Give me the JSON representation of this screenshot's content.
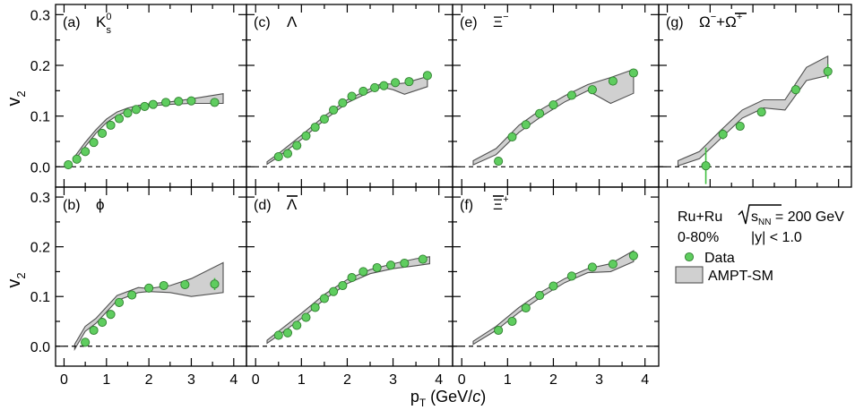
{
  "figure": {
    "ylabel_main": "v",
    "ylabel_sub": "2",
    "xlabel_main": "p",
    "xlabel_sub": "T",
    "xlabel_rest": " (GeV/",
    "xlabel_c": "c",
    "xlabel_end": ")"
  },
  "legend": {
    "system": "Ru+Ru",
    "energy_prefix": "s",
    "energy_sub": "NN",
    "energy_value": " = 200 GeV",
    "centrality": "0-80%",
    "rapidity": "|y| < 1.0",
    "data_label": "Data",
    "model_label": "AMPT-SM"
  },
  "colors": {
    "data_fill": "#5fcd5f",
    "data_edge": "#2f7f2f",
    "band_fill": "#d0d0d0",
    "band_edge": "#505050"
  },
  "chart_data": [
    {
      "type": "scatter",
      "panel": "(a)",
      "particle": "K",
      "particle_sup": "0",
      "particle_sub": "s",
      "xlim": [
        -0.2,
        4.3
      ],
      "ylim": [
        -0.04,
        0.32
      ],
      "x_ticks": [
        "0",
        "1",
        "2",
        "3",
        "4"
      ],
      "y_ticks": [
        "0.0",
        "0.1",
        "0.2",
        "0.3"
      ],
      "data": {
        "x": [
          0.1,
          0.3,
          0.5,
          0.7,
          0.9,
          1.1,
          1.3,
          1.5,
          1.7,
          1.9,
          2.1,
          2.4,
          2.7,
          3.0,
          3.55
        ],
        "y": [
          0.004,
          0.015,
          0.03,
          0.048,
          0.066,
          0.082,
          0.095,
          0.106,
          0.113,
          0.119,
          0.123,
          0.127,
          0.129,
          0.13,
          0.127
        ],
        "yerr": [
          0.002,
          0.002,
          0.002,
          0.002,
          0.002,
          0.002,
          0.002,
          0.002,
          0.002,
          0.002,
          0.002,
          0.002,
          0.002,
          0.003,
          0.005
        ]
      },
      "model": {
        "x": [
          0.25,
          0.5,
          0.75,
          1.0,
          1.25,
          1.5,
          1.75,
          2.0,
          2.5,
          3.0,
          3.75
        ],
        "upper": [
          0.02,
          0.048,
          0.073,
          0.094,
          0.108,
          0.116,
          0.121,
          0.124,
          0.128,
          0.134,
          0.144
        ],
        "lower": [
          0.013,
          0.04,
          0.066,
          0.087,
          0.101,
          0.11,
          0.116,
          0.12,
          0.123,
          0.125,
          0.125
        ]
      }
    },
    {
      "type": "scatter",
      "panel": "(c)",
      "particle": "Λ",
      "particle_sup": "",
      "particle_sub": "",
      "xlim": [
        -0.2,
        4.3
      ],
      "ylim": [
        -0.04,
        0.32
      ],
      "x_ticks": [
        "0",
        "1",
        "2",
        "3",
        "4"
      ],
      "y_ticks": [],
      "data": {
        "x": [
          0.5,
          0.7,
          0.9,
          1.1,
          1.3,
          1.5,
          1.7,
          1.9,
          2.1,
          2.35,
          2.6,
          2.8,
          3.05,
          3.35,
          3.75
        ],
        "y": [
          0.02,
          0.026,
          0.042,
          0.061,
          0.078,
          0.094,
          0.112,
          0.126,
          0.139,
          0.149,
          0.156,
          0.16,
          0.166,
          0.168,
          0.18
        ],
        "yerr": [
          0.002,
          0.002,
          0.002,
          0.002,
          0.002,
          0.002,
          0.002,
          0.002,
          0.002,
          0.002,
          0.002,
          0.002,
          0.002,
          0.003,
          0.004
        ]
      },
      "model": {
        "x": [
          0.25,
          0.5,
          1.0,
          1.5,
          2.0,
          2.5,
          2.75,
          3.0,
          3.25,
          3.75
        ],
        "upper": [
          0.01,
          0.026,
          0.062,
          0.1,
          0.132,
          0.154,
          0.164,
          0.163,
          0.165,
          0.178
        ],
        "lower": [
          0.005,
          0.02,
          0.054,
          0.092,
          0.126,
          0.148,
          0.157,
          0.152,
          0.143,
          0.158
        ]
      }
    },
    {
      "type": "scatter",
      "panel": "(e)",
      "particle": "Ξ",
      "particle_sup": "−",
      "particle_sub": "",
      "xlim": [
        -0.2,
        4.3
      ],
      "ylim": [
        -0.04,
        0.32
      ],
      "x_ticks": [
        "0",
        "1",
        "2",
        "3",
        "4"
      ],
      "y_ticks": [],
      "data": {
        "x": [
          0.8,
          1.1,
          1.4,
          1.7,
          2.0,
          2.4,
          2.85,
          3.3,
          3.75
        ],
        "y": [
          0.011,
          0.059,
          0.083,
          0.105,
          0.122,
          0.141,
          0.152,
          0.169,
          0.185
        ],
        "yerr": [
          0.003,
          0.004,
          0.003,
          0.003,
          0.003,
          0.003,
          0.004,
          0.005,
          0.008
        ]
      },
      "model": {
        "x": [
          0.25,
          0.75,
          1.25,
          1.75,
          2.25,
          2.75,
          3.25,
          3.75
        ],
        "upper": [
          0.012,
          0.036,
          0.082,
          0.114,
          0.14,
          0.162,
          0.176,
          0.192
        ],
        "lower": [
          0.004,
          0.024,
          0.068,
          0.1,
          0.128,
          0.15,
          0.125,
          0.145
        ]
      }
    },
    {
      "type": "scatter",
      "panel": "(g)",
      "particle": "Ω",
      "particle_sup": "−",
      "particle_sub": "",
      "particle2": "+",
      "particle2_bar": "Ω",
      "particle2_sup": "+",
      "xlim": [
        -0.2,
        4.3
      ],
      "ylim": [
        -0.04,
        0.32
      ],
      "x_ticks": [
        "0",
        "1",
        "2",
        "3",
        "4"
      ],
      "y_ticks": [],
      "data": {
        "x": [
          0.9,
          1.3,
          1.7,
          2.2,
          3.0,
          3.75
        ],
        "y": [
          0.002,
          0.064,
          0.08,
          0.108,
          0.152,
          0.188
        ],
        "yerr": [
          0.036,
          0.01,
          0.006,
          0.006,
          0.006,
          0.014
        ]
      },
      "model": {
        "x": [
          0.25,
          0.75,
          1.25,
          1.75,
          2.25,
          2.75,
          3.25,
          3.75
        ],
        "upper": [
          0.012,
          0.03,
          0.072,
          0.112,
          0.132,
          0.132,
          0.196,
          0.218
        ],
        "lower": [
          0.002,
          0.016,
          0.056,
          0.096,
          0.116,
          0.112,
          0.17,
          0.18
        ]
      }
    },
    {
      "type": "scatter",
      "panel": "(b)",
      "particle": "ϕ",
      "particle_sup": "",
      "particle_sub": "",
      "xlim": [
        -0.2,
        4.3
      ],
      "ylim": [
        -0.04,
        0.32
      ],
      "x_ticks": [
        "0",
        "1",
        "2",
        "3",
        "4"
      ],
      "y_ticks": [
        "0.0",
        "0.1",
        "0.2",
        "0.3"
      ],
      "data": {
        "x": [
          0.5,
          0.7,
          0.9,
          1.1,
          1.3,
          1.6,
          2.0,
          2.35,
          2.85,
          3.55
        ],
        "y": [
          0.008,
          0.032,
          0.048,
          0.064,
          0.088,
          0.103,
          0.117,
          0.122,
          0.124,
          0.125
        ],
        "yerr": [
          0.004,
          0.003,
          0.003,
          0.003,
          0.003,
          0.003,
          0.004,
          0.005,
          0.007,
          0.012
        ]
      },
      "model": {
        "x": [
          0.25,
          0.5,
          0.75,
          1.25,
          1.75,
          2.0,
          2.5,
          3.0,
          3.75
        ],
        "upper": [
          0.004,
          0.04,
          0.056,
          0.102,
          0.118,
          0.116,
          0.122,
          0.136,
          0.168
        ],
        "lower": [
          -0.006,
          0.03,
          0.046,
          0.092,
          0.108,
          0.11,
          0.108,
          0.1,
          0.108
        ]
      }
    },
    {
      "type": "scatter",
      "panel": "(d)",
      "particle": "Λ",
      "particle_bar": true,
      "particle_sup": "",
      "particle_sub": "",
      "xlim": [
        -0.2,
        4.3
      ],
      "ylim": [
        -0.04,
        0.32
      ],
      "x_ticks": [
        "0",
        "1",
        "2",
        "3",
        "4"
      ],
      "y_ticks": [],
      "data": {
        "x": [
          0.5,
          0.7,
          0.9,
          1.1,
          1.3,
          1.5,
          1.7,
          1.9,
          2.1,
          2.35,
          2.65,
          2.95,
          3.25,
          3.65
        ],
        "y": [
          0.022,
          0.027,
          0.042,
          0.058,
          0.078,
          0.096,
          0.11,
          0.122,
          0.138,
          0.15,
          0.158,
          0.163,
          0.167,
          0.175
        ],
        "yerr": [
          0.002,
          0.002,
          0.002,
          0.002,
          0.002,
          0.002,
          0.002,
          0.002,
          0.002,
          0.002,
          0.002,
          0.002,
          0.003,
          0.003
        ]
      },
      "model": {
        "x": [
          0.25,
          0.5,
          1.0,
          1.5,
          2.0,
          2.5,
          3.0,
          3.5,
          3.8
        ],
        "upper": [
          0.012,
          0.03,
          0.066,
          0.104,
          0.134,
          0.154,
          0.166,
          0.176,
          0.18
        ],
        "lower": [
          0.006,
          0.022,
          0.056,
          0.094,
          0.126,
          0.146,
          0.156,
          0.162,
          0.166
        ]
      }
    },
    {
      "type": "scatter",
      "panel": "(f)",
      "particle": "Ξ",
      "particle_bar": true,
      "particle_sup": "+",
      "particle_sub": "",
      "xlim": [
        -0.2,
        4.3
      ],
      "ylim": [
        -0.04,
        0.32
      ],
      "x_ticks": [
        "0",
        "1",
        "2",
        "3",
        "4"
      ],
      "y_ticks": [],
      "data": {
        "x": [
          0.8,
          1.1,
          1.4,
          1.7,
          2.0,
          2.4,
          2.85,
          3.3,
          3.75
        ],
        "y": [
          0.032,
          0.05,
          0.077,
          0.102,
          0.121,
          0.141,
          0.159,
          0.165,
          0.182
        ],
        "yerr": [
          0.003,
          0.003,
          0.003,
          0.003,
          0.003,
          0.003,
          0.004,
          0.005,
          0.006
        ]
      },
      "model": {
        "x": [
          0.25,
          0.75,
          1.25,
          1.75,
          2.25,
          2.75,
          3.25,
          3.75
        ],
        "upper": [
          0.01,
          0.04,
          0.078,
          0.11,
          0.136,
          0.156,
          0.166,
          0.192
        ],
        "lower": [
          0.004,
          0.032,
          0.068,
          0.1,
          0.128,
          0.148,
          0.15,
          0.17
        ]
      }
    }
  ]
}
